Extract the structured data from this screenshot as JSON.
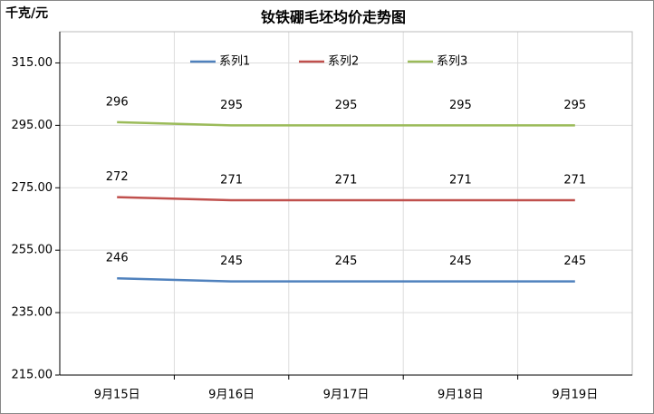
{
  "chart_data": {
    "type": "line",
    "title": "钕铁硼毛坯均价走势图",
    "y_label": "千克/元",
    "categories": [
      "9月15日",
      "9月16日",
      "9月17日",
      "9月18日",
      "9月19日"
    ],
    "series": [
      {
        "name": "系列1",
        "color": "#4f81bd",
        "values": [
          246,
          245,
          245,
          245,
          245
        ]
      },
      {
        "name": "系列2",
        "color": "#c0504d",
        "values": [
          272,
          271,
          271,
          271,
          271
        ]
      },
      {
        "name": "系列3",
        "color": "#9bbb59",
        "values": [
          296,
          295,
          295,
          295,
          295
        ]
      }
    ],
    "ylim": [
      215,
      325
    ],
    "yticks": [
      {
        "value": 215,
        "label": "215.00"
      },
      {
        "value": 235,
        "label": "235.00"
      },
      {
        "value": 255,
        "label": "255.00"
      },
      {
        "value": 275,
        "label": "275.00"
      },
      {
        "value": 295,
        "label": "295.00"
      },
      {
        "value": 315,
        "label": "315.00"
      }
    ],
    "grid": true,
    "legend": "top"
  }
}
